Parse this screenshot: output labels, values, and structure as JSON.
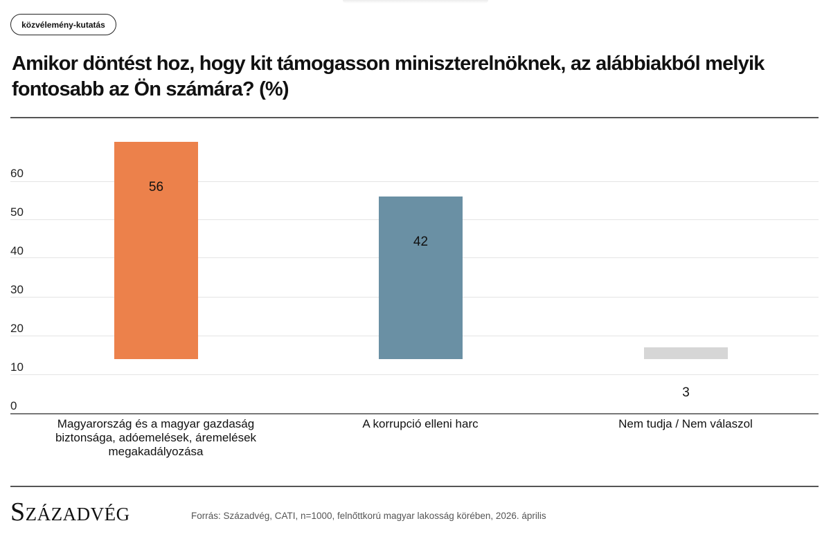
{
  "tag": {
    "label": "közvélemény-kutatás"
  },
  "title": "Amikor döntést hoz, hogy kit támogasson miniszterelnöknek, az alábbiakból melyik fontosabb az Ön számára? (%)",
  "footer": {
    "logo": "Századvég",
    "source": "Forrás: Századvég, CATI, n=1000, felnőttkorú magyar lakosság körében, 2026. április"
  },
  "colors": {
    "bar_1": "#EC814B",
    "bar_2": "#6A90A4",
    "bar_3": "#D6D6D6",
    "gridline": "#E4E4E4",
    "axis": "#777777"
  },
  "chart_data": {
    "type": "bar",
    "title": "Amikor döntést hoz, hogy kit támogasson miniszterelnöknek, az alábbiakból melyik fontosabb az Ön számára? (%)",
    "categories": [
      "Magyarország és a magyar gazdaság biztonsága, adóemelések, áremelések megakadályozása",
      "A korrupció elleni harc",
      "Nem tudja / Nem válaszol"
    ],
    "values": [
      56,
      42,
      3
    ],
    "value_labels": [
      "56",
      "42",
      "3"
    ],
    "bar_colors": [
      "#EC814B",
      "#6A90A4",
      "#D6D6D6"
    ],
    "xlabel": "",
    "ylabel": "",
    "ylim": [
      0,
      60
    ],
    "yticks": [
      0,
      10,
      20,
      30,
      40,
      50,
      60
    ],
    "ytick_labels": [
      "0",
      "10",
      "20",
      "30",
      "40",
      "50",
      "60"
    ],
    "grid": true,
    "legend": null
  }
}
